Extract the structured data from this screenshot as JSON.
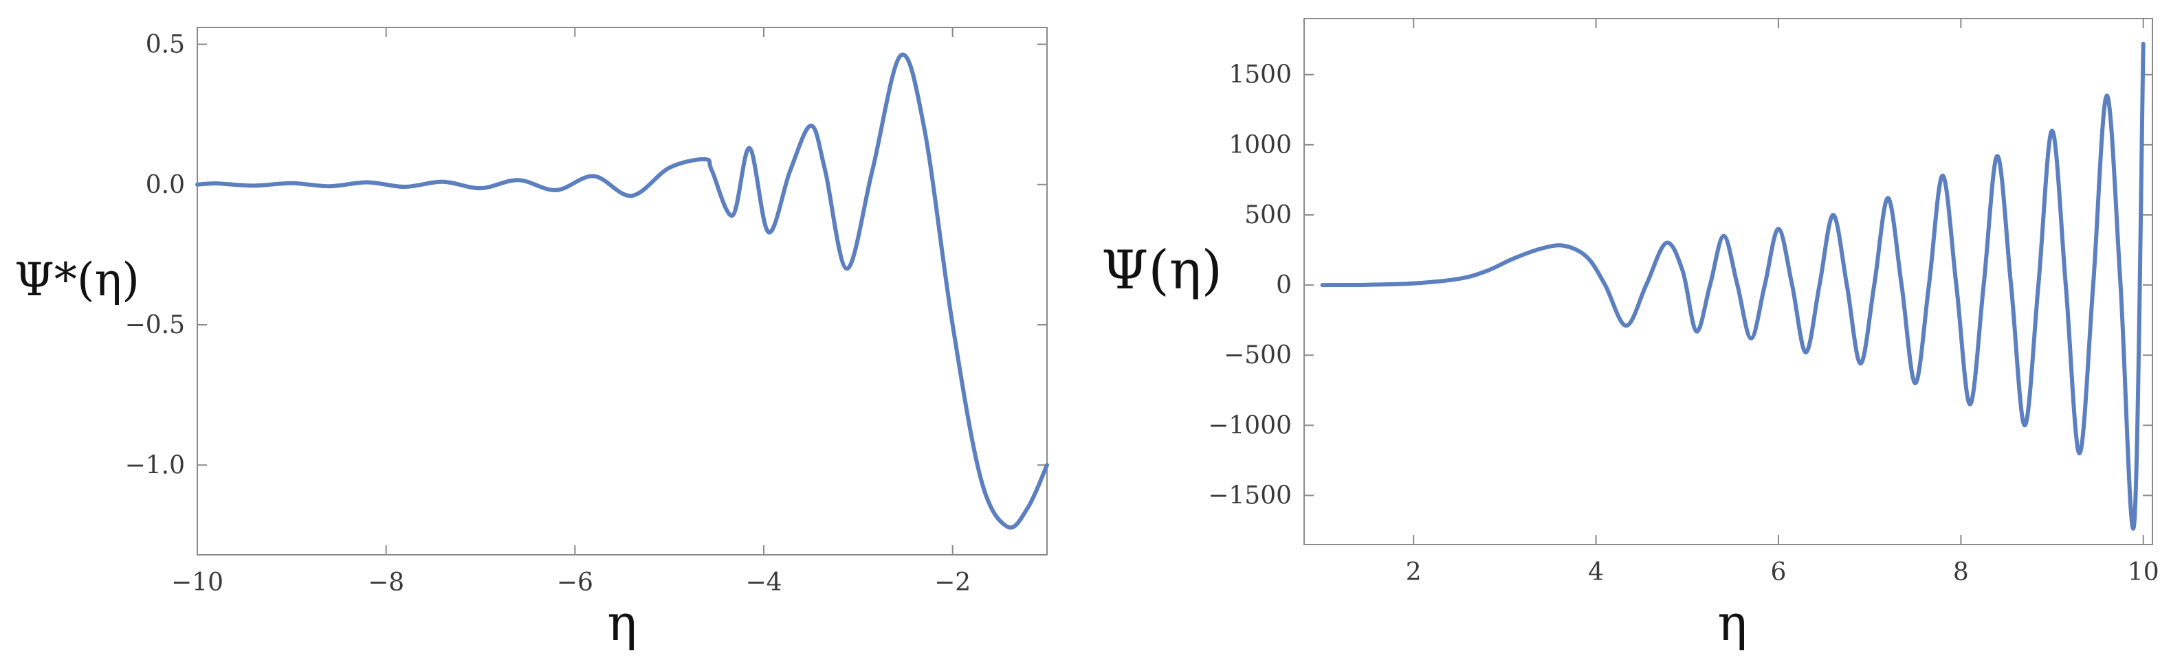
{
  "colors": {
    "line": "#5b7fbf",
    "frame": "#8a8a8a",
    "text": "#3a3a3a"
  },
  "chart_data": [
    {
      "type": "line",
      "title": "",
      "xlabel": "η",
      "ylabel": "Ψ*(η)",
      "xlim": [
        -10,
        -1
      ],
      "ylim": [
        -1.32,
        0.56
      ],
      "grid": false,
      "xticks": [
        -10,
        -8,
        -6,
        -4,
        -2
      ],
      "xtick_labels": [
        "−10",
        "−8",
        "−6",
        "−4",
        "−2"
      ],
      "yticks": [
        0.5,
        0.0,
        -0.5,
        -1.0
      ],
      "ytick_labels": [
        "0.5",
        "0.0",
        "−0.5",
        "−1.0"
      ],
      "series": [
        {
          "x": [
            -10,
            -9.8,
            -9.4,
            -9.0,
            -8.6,
            -8.2,
            -7.8,
            -7.4,
            -7.0,
            -6.6,
            -6.2,
            -5.8,
            -5.4,
            -5.0,
            -4.62,
            -4.55,
            -4.33,
            -4.15,
            -3.95,
            -3.72,
            -3.5,
            -3.35,
            -3.12,
            -2.85,
            -2.55,
            -2.3,
            -2.0,
            -1.7,
            -1.42,
            -1.2,
            -1.0
          ],
          "y": [
            0.0,
            0.004,
            -0.004,
            0.005,
            -0.006,
            0.008,
            -0.008,
            0.01,
            -0.013,
            0.016,
            -0.02,
            0.03,
            -0.04,
            0.06,
            0.09,
            0.05,
            -0.11,
            0.13,
            -0.17,
            0.05,
            0.21,
            0.05,
            -0.3,
            0.05,
            0.46,
            0.2,
            -0.5,
            -1.05,
            -1.22,
            -1.15,
            -1.0
          ]
        }
      ]
    },
    {
      "type": "line",
      "title": "",
      "xlabel": "η",
      "ylabel": "Ψ(η)",
      "xlim": [
        0.8,
        10.1
      ],
      "ylim": [
        -1850,
        1900
      ],
      "grid": false,
      "xticks": [
        2,
        4,
        6,
        8,
        10
      ],
      "xtick_labels": [
        "2",
        "4",
        "6",
        "8",
        "10"
      ],
      "yticks": [
        1500,
        1000,
        500,
        0,
        -500,
        -1000,
        -1500
      ],
      "ytick_labels": [
        "1500",
        "1000",
        "500",
        "0",
        "−500",
        "−1000",
        "−1500"
      ],
      "series": [
        {
          "x": [
            1.0,
            1.5,
            2.0,
            2.5,
            2.8,
            3.1,
            3.4,
            3.65,
            3.9,
            4.1,
            4.33,
            4.55,
            4.77,
            4.95,
            5.1,
            5.25,
            5.4,
            5.55,
            5.7,
            5.85,
            6.0,
            6.15,
            6.3,
            6.45,
            6.6,
            6.75,
            6.9,
            7.05,
            7.2,
            7.35,
            7.5,
            7.65,
            7.8,
            7.95,
            8.1,
            8.25,
            8.4,
            8.55,
            8.7,
            8.85,
            9.0,
            9.15,
            9.3,
            9.45,
            9.6,
            9.75,
            9.9,
            10.0
          ],
          "y": [
            0,
            2,
            12,
            45,
            100,
            190,
            260,
            280,
            200,
            0,
            -290,
            0,
            300,
            100,
            -330,
            0,
            350,
            0,
            -380,
            0,
            400,
            0,
            -480,
            0,
            500,
            0,
            -560,
            0,
            620,
            0,
            -700,
            0,
            780,
            0,
            -850,
            0,
            920,
            0,
            -1000,
            0,
            1100,
            0,
            -1200,
            0,
            1350,
            0,
            -1700,
            1720
          ]
        }
      ]
    }
  ]
}
